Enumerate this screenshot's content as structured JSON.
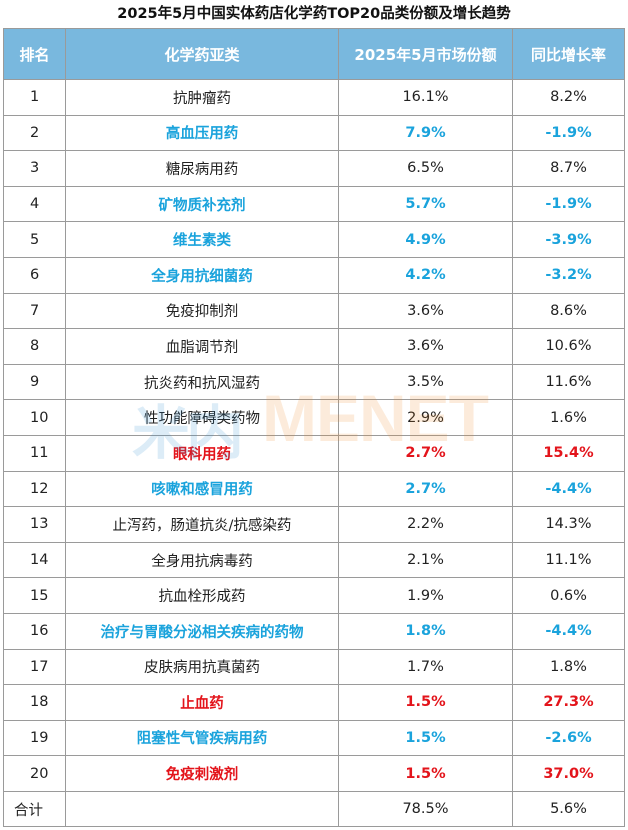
{
  "title": "2025年5月中国实体药店化学药TOP20品类份额及增长趋势",
  "headers": [
    "排名",
    "化学药亚类",
    "2025年5月市场份额",
    "同比增长率"
  ],
  "rows": [
    {
      "rank": "1",
      "name": "抗肿瘤药",
      "share": "16.1%",
      "growth": "8.2%",
      "style": "normal"
    },
    {
      "rank": "2",
      "name": "高血压用药",
      "share": "7.9%",
      "growth": "-1.9%",
      "style": "blue"
    },
    {
      "rank": "3",
      "name": "糖尿病用药",
      "share": "6.5%",
      "growth": "8.7%",
      "style": "normal"
    },
    {
      "rank": "4",
      "name": "矿物质补充剂",
      "share": "5.7%",
      "growth": "-1.9%",
      "style": "blue"
    },
    {
      "rank": "5",
      "name": "维生素类",
      "share": "4.9%",
      "growth": "-3.9%",
      "style": "blue"
    },
    {
      "rank": "6",
      "name": "全身用抗细菌药",
      "share": "4.2%",
      "growth": "-3.2%",
      "style": "blue"
    },
    {
      "rank": "7",
      "name": "免疫抑制剂",
      "share": "3.6%",
      "growth": "8.6%",
      "style": "normal"
    },
    {
      "rank": "8",
      "name": "血脂调节剂",
      "share": "3.6%",
      "growth": "10.6%",
      "style": "normal"
    },
    {
      "rank": "9",
      "name": "抗炎药和抗风湿药",
      "share": "3.5%",
      "growth": "11.6%",
      "style": "normal"
    },
    {
      "rank": "10",
      "name": "性功能障碍类药物",
      "share": "2.9%",
      "growth": "1.6%",
      "style": "normal"
    },
    {
      "rank": "11",
      "name": "眼科用药",
      "share": "2.7%",
      "growth": "15.4%",
      "style": "red"
    },
    {
      "rank": "12",
      "name": "咳嗽和感冒用药",
      "share": "2.7%",
      "growth": "-4.4%",
      "style": "blue"
    },
    {
      "rank": "13",
      "name": "止泻药，肠道抗炎/抗感染药",
      "share": "2.2%",
      "growth": "14.3%",
      "style": "normal"
    },
    {
      "rank": "14",
      "name": "全身用抗病毒药",
      "share": "2.1%",
      "growth": "11.1%",
      "style": "normal"
    },
    {
      "rank": "15",
      "name": "抗血栓形成药",
      "share": "1.9%",
      "growth": "0.6%",
      "style": "normal"
    },
    {
      "rank": "16",
      "name": "治疗与胃酸分泌相关疾病的药物",
      "share": "1.8%",
      "growth": "-4.4%",
      "style": "blue"
    },
    {
      "rank": "17",
      "name": "皮肤病用抗真菌药",
      "share": "1.7%",
      "growth": "1.8%",
      "style": "normal"
    },
    {
      "rank": "18",
      "name": "止血药",
      "share": "1.5%",
      "growth": "27.3%",
      "style": "red"
    },
    {
      "rank": "19",
      "name": "阻塞性气管疾病用药",
      "share": "1.5%",
      "growth": "-2.6%",
      "style": "blue"
    },
    {
      "rank": "20",
      "name": "免疫刺激剂",
      "share": "1.5%",
      "growth": "37.0%",
      "style": "red"
    }
  ],
  "total": {
    "label": "合计",
    "name": "",
    "share": "78.5%",
    "growth": "5.6%"
  },
  "watermark": {
    "cn": "米内",
    "en": "MENET"
  },
  "colors": {
    "header_bg": "#79b8de",
    "blue": "#1aa3dc",
    "red": "#e3141b"
  }
}
